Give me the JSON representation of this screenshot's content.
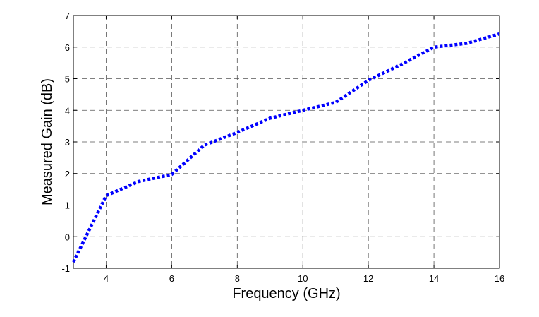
{
  "chart_data": {
    "type": "line",
    "title": "",
    "xlabel": "Frequency (GHz)",
    "ylabel": "Measured Gain (dB)",
    "xlim": [
      3,
      16
    ],
    "ylim": [
      -1,
      7
    ],
    "xticks": [
      4,
      6,
      8,
      10,
      12,
      14,
      16
    ],
    "yticks": [
      -1,
      0,
      1,
      2,
      3,
      4,
      5,
      6,
      7
    ],
    "grid": true,
    "grid_style": "dashed",
    "legend": "none",
    "series": [
      {
        "color": "#0000ff",
        "line_style": "dotted",
        "x": [
          3,
          4,
          5,
          6,
          7,
          8,
          9,
          10,
          11,
          12,
          13,
          14,
          15,
          16
        ],
        "y": [
          -0.8,
          1.3,
          1.75,
          1.97,
          2.9,
          3.3,
          3.75,
          4.0,
          4.25,
          4.95,
          5.45,
          6.0,
          6.12,
          6.42
        ]
      }
    ]
  }
}
